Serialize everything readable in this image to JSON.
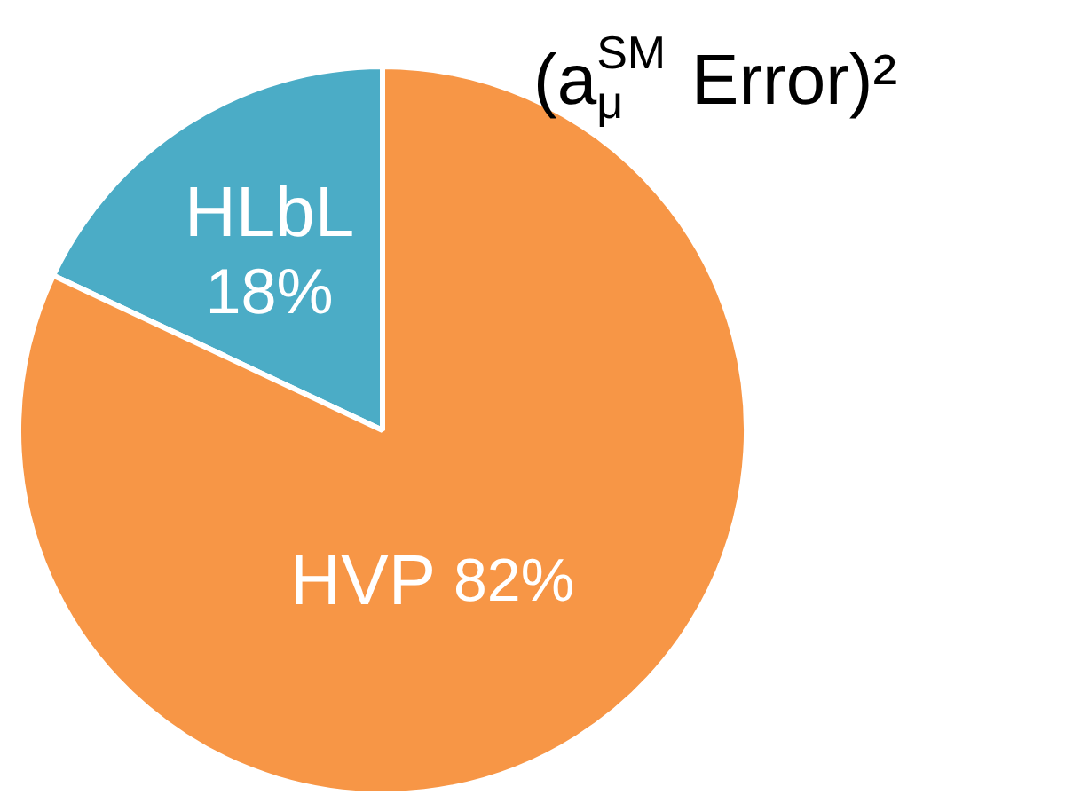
{
  "chart_data": {
    "type": "pie",
    "title": "(a$_{μ}$$^{SM}$ Error)²",
    "categories": [
      "HLbL",
      "HVP"
    ],
    "values": [
      18,
      82
    ],
    "colors": [
      "#4bacc6",
      "#f79646"
    ],
    "value_labels": [
      "18%",
      "82%"
    ]
  }
}
